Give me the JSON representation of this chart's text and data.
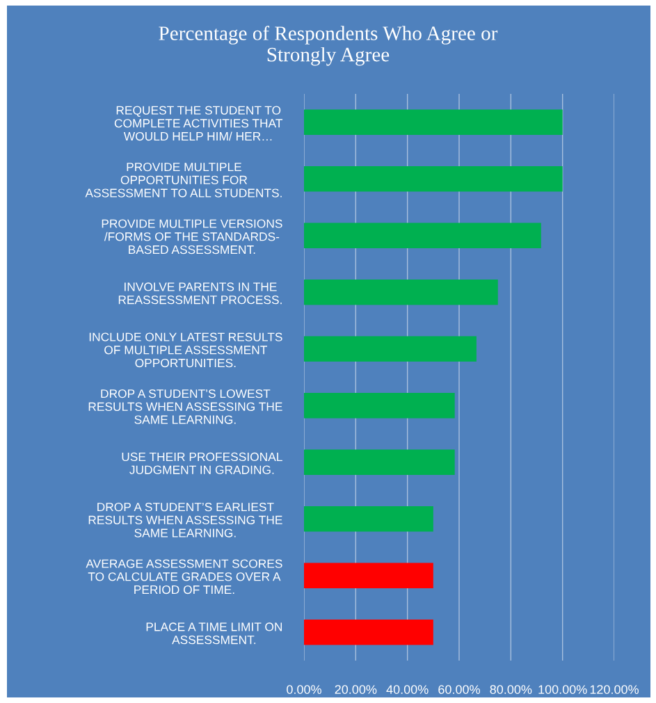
{
  "chart_data": {
    "type": "bar",
    "orientation": "horizontal",
    "title": "Percentage of Respondents Who Agree or\nStrongly Agree",
    "categories": [
      "REQUEST THE STUDENT TO\nCOMPLETE ACTIVITIES THAT\nWOULD HELP HIM/ HER…",
      "PROVIDE MULTIPLE\nOPPORTUNITIES FOR\nASSESSMENT TO ALL STUDENTS.",
      "PROVIDE MULTIPLE VERSIONS\n/FORMS OF THE STANDARDS-\nBASED ASSESSMENT.",
      "INVOLVE PARENTS IN THE\nREASSESSMENT PROCESS.",
      "INCLUDE ONLY LATEST RESULTS\nOF MULTIPLE ASSESSMENT\nOPPORTUNITIES.",
      "DROP A STUDENT’S LOWEST\nRESULTS WHEN ASSESSING THE\nSAME LEARNING.",
      "USE THEIR PROFESSIONAL\nJUDGMENT IN GRADING.",
      "DROP A STUDENT’S EARLIEST\nRESULTS WHEN ASSESSING THE\nSAME LEARNING.",
      "AVERAGE ASSESSMENT SCORES\nTO CALCULATE GRADES OVER A\nPERIOD OF TIME.",
      "PLACE A TIME LIMIT ON\nASSESSMENT."
    ],
    "values": [
      100,
      100,
      91.7,
      75,
      66.7,
      58.3,
      58.3,
      50,
      50,
      50
    ],
    "colors": [
      "#00b050",
      "#00b050",
      "#00b050",
      "#00b050",
      "#00b050",
      "#00b050",
      "#00b050",
      "#00b050",
      "#ff0000",
      "#ff0000"
    ],
    "xlim": [
      0,
      120
    ],
    "xticks": [
      {
        "value": 0,
        "label": "0.00%"
      },
      {
        "value": 20,
        "label": "20.00%"
      },
      {
        "value": 40,
        "label": "40.00%"
      },
      {
        "value": 60,
        "label": "60.00%"
      },
      {
        "value": 80,
        "label": "80.00%"
      },
      {
        "value": 100,
        "label": "100.00%"
      },
      {
        "value": 120,
        "label": "120.00%"
      }
    ],
    "grid": "x"
  }
}
